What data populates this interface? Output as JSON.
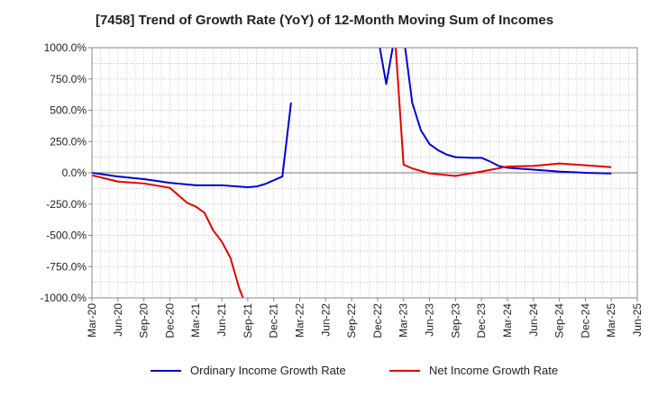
{
  "chart_data": {
    "type": "line",
    "title": "[7458]  Trend of Growth Rate (YoY) of 12-Month Moving Sum of Incomes",
    "xlabel": "",
    "ylabel": "",
    "ylim": [
      -1000,
      1000
    ],
    "y_ticks": [
      1000,
      750,
      500,
      250,
      0,
      -250,
      -500,
      -750,
      -1000
    ],
    "y_tick_labels": [
      "1000.0%",
      "750.0%",
      "500.0%",
      "250.0%",
      "0.0%",
      "-250.0%",
      "-500.0%",
      "-750.0%",
      "-1000.0%"
    ],
    "x_tick_labels": [
      "Mar-20",
      "Jun-20",
      "Sep-20",
      "Dec-20",
      "Mar-21",
      "Jun-21",
      "Sep-21",
      "Dec-21",
      "Mar-22",
      "Jun-22",
      "Sep-22",
      "Dec-22",
      "Mar-23",
      "Jun-23",
      "Sep-23",
      "Dec-23",
      "Mar-24",
      "Jun-24",
      "Sep-24",
      "Dec-24",
      "Mar-25",
      "Jun-25"
    ],
    "x_unit": "month",
    "x_start": "2020-03",
    "grid": true,
    "legend_position": "bottom",
    "series": [
      {
        "name": "Ordinary Income Growth Rate",
        "color": "#0000cc",
        "segments": [
          [
            [
              "2020-03",
              0
            ],
            [
              "2020-06",
              -30
            ],
            [
              "2020-09",
              -50
            ],
            [
              "2020-12",
              -80
            ],
            [
              "2021-03",
              -100
            ],
            [
              "2021-06",
              -100
            ],
            [
              "2021-09",
              -115
            ],
            [
              "2021-10",
              -110
            ],
            [
              "2021-11",
              -90
            ],
            [
              "2021-12",
              -60
            ],
            [
              "2022-01",
              -30
            ],
            [
              "2022-02",
              560
            ]
          ],
          [
            [
              "2022-12",
              1100
            ],
            [
              "2023-01",
              710
            ],
            [
              "2023-02",
              1100
            ]
          ],
          [
            [
              "2023-03",
              1100
            ],
            [
              "2023-04",
              560
            ],
            [
              "2023-05",
              340
            ],
            [
              "2023-06",
              230
            ],
            [
              "2023-07",
              180
            ],
            [
              "2023-08",
              145
            ],
            [
              "2023-09",
              125
            ],
            [
              "2023-10",
              122
            ],
            [
              "2023-11",
              120
            ],
            [
              "2023-12",
              120
            ],
            [
              "2024-01",
              90
            ],
            [
              "2024-02",
              55
            ],
            [
              "2024-03",
              40
            ],
            [
              "2024-06",
              25
            ],
            [
              "2024-09",
              10
            ],
            [
              "2024-12",
              0
            ],
            [
              "2025-03",
              -5
            ]
          ]
        ]
      },
      {
        "name": "Net Income Growth Rate",
        "color": "#e00000",
        "segments": [
          [
            [
              "2020-03",
              -20
            ],
            [
              "2020-06",
              -70
            ],
            [
              "2020-09",
              -85
            ],
            [
              "2020-12",
              -120
            ],
            [
              "2021-01",
              -180
            ],
            [
              "2021-02",
              -240
            ],
            [
              "2021-03",
              -270
            ],
            [
              "2021-04",
              -320
            ],
            [
              "2021-05",
              -460
            ],
            [
              "2021-06",
              -550
            ],
            [
              "2021-07",
              -680
            ],
            [
              "2021-08",
              -920
            ],
            [
              "2021-09",
              -1100
            ]
          ],
          [
            [
              "2023-02",
              1100
            ],
            [
              "2023-03",
              65
            ],
            [
              "2023-04",
              35
            ],
            [
              "2023-05",
              15
            ],
            [
              "2023-06",
              -5
            ],
            [
              "2023-09",
              -25
            ],
            [
              "2023-12",
              10
            ],
            [
              "2024-03",
              50
            ],
            [
              "2024-06",
              55
            ],
            [
              "2024-09",
              75
            ],
            [
              "2024-12",
              60
            ],
            [
              "2025-03",
              45
            ]
          ]
        ]
      }
    ]
  }
}
